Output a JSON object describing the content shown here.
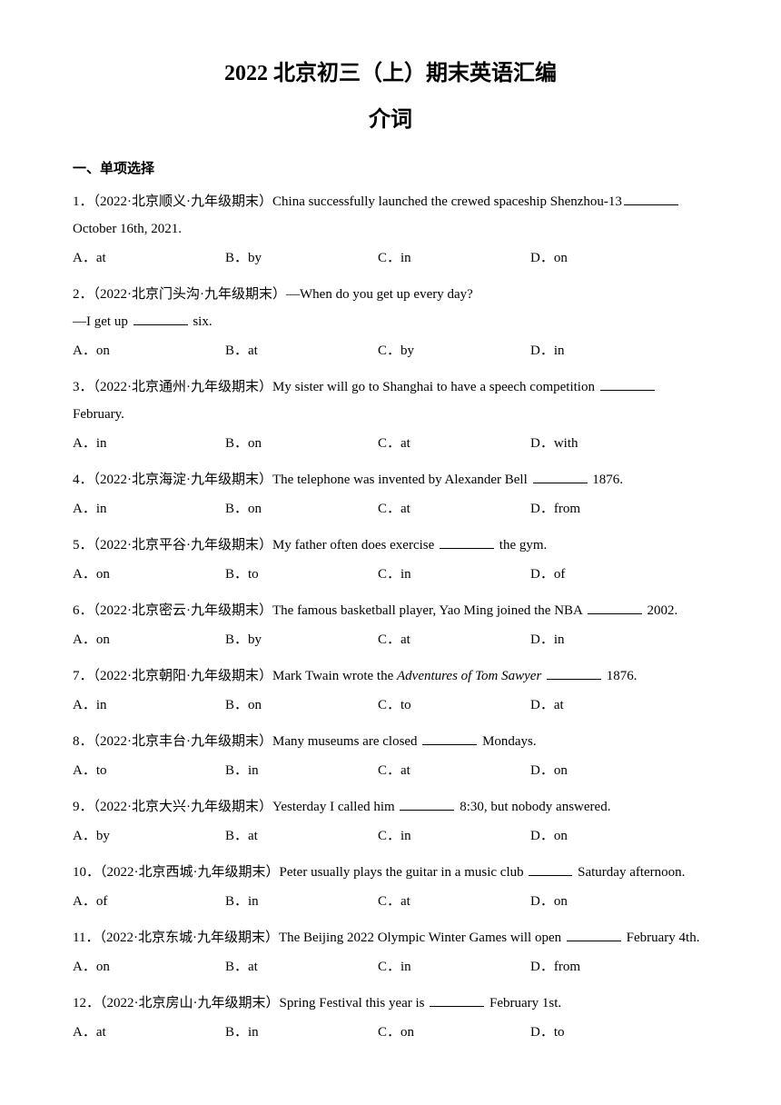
{
  "title_main": "2022 北京初三（上）期末英语汇编",
  "title_sub": "介词",
  "section_header": "一、单项选择",
  "questions": [
    {
      "num": "1",
      "source": "（2022·北京顺义·九年级期末）",
      "text_before": "China successfully launched the crewed spaceship Shenzhou-13",
      "text_after": "",
      "continuation": "October 16th, 2021.",
      "options": [
        "A．at",
        "B．by",
        "C．in",
        "D．on"
      ]
    },
    {
      "num": "2",
      "source": "（2022·北京门头沟·九年级期末）",
      "text_before": "—When do you get up every day?",
      "text_after": "",
      "continuation_prefix": "—I get up ",
      "continuation_suffix": " six.",
      "options": [
        "A．on",
        "B．at",
        "C．by",
        "D．in"
      ]
    },
    {
      "num": "3",
      "source": "（2022·北京通州·九年级期末）",
      "text_before": "My sister will go to Shanghai to have a speech competition ",
      "text_after": "",
      "continuation": "February.",
      "options": [
        "A．in",
        "B．on",
        "C．at",
        "D．with"
      ]
    },
    {
      "num": "4",
      "source": "（2022·北京海淀·九年级期末）",
      "text_before": "The telephone was invented by Alexander Bell ",
      "text_after": " 1876.",
      "options": [
        "A．in",
        "B．on",
        "C．at",
        "D．from"
      ]
    },
    {
      "num": "5",
      "source": "（2022·北京平谷·九年级期末）",
      "text_before": "My father often does exercise ",
      "text_after": " the gym.",
      "options": [
        "A．on",
        "B．to",
        "C．in",
        "D．of"
      ]
    },
    {
      "num": "6",
      "source": "（2022·北京密云·九年级期末）",
      "text_before": "The famous basketball player, Yao Ming joined the NBA ",
      "text_after": " 2002.",
      "options": [
        "A．on",
        "B．by",
        "C．at",
        "D．in"
      ]
    },
    {
      "num": "7",
      "source": "（2022·北京朝阳·九年级期末）",
      "text_before": "Mark Twain wrote the ",
      "italic_text": "Adventures of Tom Sawyer ",
      "text_after": " 1876.",
      "options": [
        "A．in",
        "B．on",
        "C．to",
        "D．at"
      ]
    },
    {
      "num": "8",
      "source": "（2022·北京丰台·九年级期末）",
      "text_before": "Many museums are closed ",
      "text_after": " Mondays.",
      "options": [
        "A．to",
        "B．in",
        "C．at",
        "D．on"
      ]
    },
    {
      "num": "9",
      "source": "（2022·北京大兴·九年级期末）",
      "text_before": "Yesterday I called him ",
      "text_after": " 8:30, but nobody answered.",
      "options": [
        "A．by",
        "B．at",
        "C．in",
        "D．on"
      ]
    },
    {
      "num": "10",
      "source": "（2022·北京西城·九年级期末）",
      "text_before": "Peter usually plays the guitar in a music club ",
      "text_after": " Saturday afternoon.",
      "options": [
        "A．of",
        "B．in",
        "C．at",
        "D．on"
      ]
    },
    {
      "num": "11",
      "source": "（2022·北京东城·九年级期末）",
      "text_before": "The Beijing 2022 Olympic Winter Games will open ",
      "text_after": " February 4th.",
      "options": [
        "A．on",
        "B．at",
        "C．in",
        "D．from"
      ]
    },
    {
      "num": "12",
      "source": "（2022·北京房山·九年级期末）",
      "text_before": "Spring Festival this year is ",
      "text_after": " February 1st.",
      "options": [
        "A．at",
        "B．in",
        "C．on",
        "D．to"
      ]
    }
  ]
}
